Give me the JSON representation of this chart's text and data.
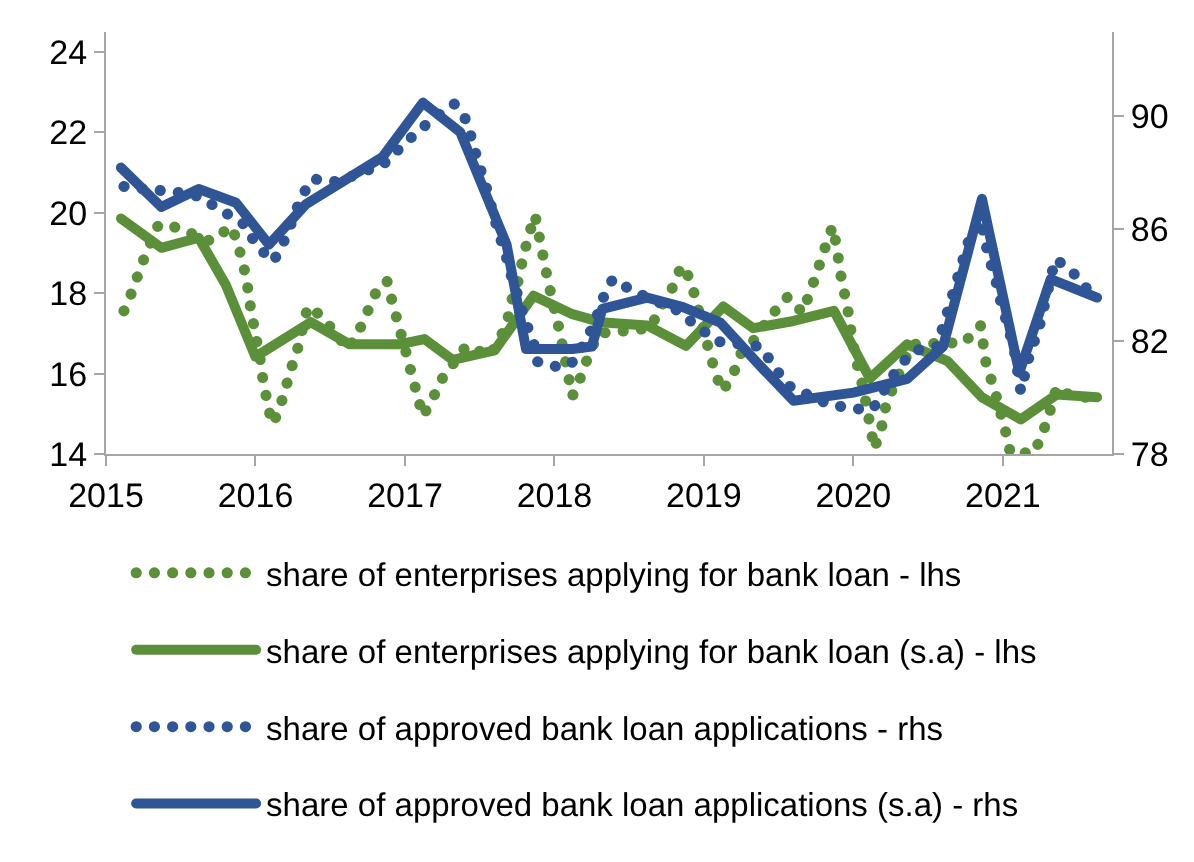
{
  "chart_data": {
    "type": "line",
    "xlim": [
      2015,
      2021.73
    ],
    "xticks": [
      2015,
      2016,
      2017,
      2018,
      2019,
      2020,
      2021
    ],
    "ylim": [
      14,
      24.5
    ],
    "yticks": [
      14,
      16,
      18,
      20,
      22,
      24
    ],
    "y2lim": [
      78,
      93
    ],
    "y2ticks": [
      78,
      82,
      86,
      90
    ],
    "legend": "bottom",
    "series": [
      {
        "name": "share of enterprises applying for bank loan - lhs",
        "color": "#5b8f3a",
        "line_style": "dotted",
        "x": [
          2015.12,
          2015.18,
          2015.23,
          2015.29,
          2015.35,
          2015.45,
          2015.7,
          2015.84,
          2015.88,
          2015.92,
          2015.95,
          2015.97,
          2016.0,
          2016.03,
          2016.05,
          2016.08,
          2016.11,
          2016.14,
          2016.19,
          2016.23,
          2016.28,
          2016.35,
          2016.44,
          2016.62,
          2016.7,
          2016.76,
          2016.82,
          2016.88,
          2016.92,
          2016.96,
          2017.0,
          2017.04,
          2017.08,
          2017.12,
          2017.18,
          2017.25,
          2017.41,
          2017.57,
          2017.68,
          2017.71,
          2017.76,
          2017.79,
          2017.83,
          2017.87,
          2017.9,
          2017.93,
          2017.96,
          2018.03,
          2018.09,
          2018.12,
          2018.18,
          2018.24,
          2018.3,
          2018.64,
          2018.71,
          2018.79,
          2018.85,
          2018.91,
          2018.95,
          2019.03,
          2019.07,
          2019.12,
          2019.19,
          2019.24,
          2019.33,
          2019.43,
          2019.56,
          2019.66,
          2019.71,
          2019.76,
          2019.81,
          2019.86,
          2019.89,
          2019.91,
          2019.94,
          2019.97,
          2019.99,
          2020.02,
          2020.06,
          2020.09,
          2020.14,
          2020.19,
          2020.22,
          2020.39,
          2020.74,
          2020.85,
          2020.89,
          2020.94,
          2021.02,
          2021.05,
          2021.21,
          2021.27,
          2021.32,
          2021.36,
          2021.46,
          2021.55,
          2021.63
        ],
        "values": [
          17.56,
          18.09,
          18.63,
          19.19,
          19.7,
          19.66,
          19.3,
          19.66,
          19.25,
          18.69,
          18.1,
          17.56,
          16.97,
          16.4,
          15.84,
          15.28,
          14.75,
          14.94,
          15.47,
          16.03,
          16.59,
          17.67,
          17.44,
          16.61,
          17.13,
          17.63,
          18.14,
          18.3,
          17.72,
          17.17,
          16.63,
          16.06,
          15.5,
          14.94,
          15.34,
          15.88,
          16.69,
          16.45,
          17.2,
          17.78,
          18.33,
          18.89,
          19.47,
          19.94,
          19.38,
          18.81,
          18.25,
          17.13,
          16.0,
          15.44,
          15.95,
          16.58,
          17.0,
          17.13,
          17.63,
          18.14,
          18.69,
          18.34,
          17.78,
          16.63,
          16.11,
          15.56,
          15.91,
          16.47,
          16.81,
          17.36,
          17.91,
          17.52,
          18.03,
          18.56,
          19.13,
          19.66,
          19.13,
          18.56,
          18.0,
          17.44,
          16.89,
          16.31,
          15.72,
          15.16,
          14.13,
          14.69,
          15.25,
          16.73,
          16.77,
          17.2,
          16.19,
          15.66,
          14.53,
          14.03,
          14.03,
          14.56,
          15.13,
          15.66,
          15.44,
          15.41,
          15.41
        ]
      },
      {
        "name": "share of enterprises applying for bank loan (s.a) - lhs",
        "color": "#5b8f3a",
        "line_style": "solid",
        "x": [
          2015.1,
          2015.37,
          2015.62,
          2015.8,
          2016.0,
          2016.37,
          2016.63,
          2016.96,
          2017.13,
          2017.32,
          2017.6,
          2017.86,
          2018.12,
          2018.31,
          2018.62,
          2018.88,
          2019.13,
          2019.33,
          2019.6,
          2019.87,
          2020.11,
          2020.36,
          2020.63,
          2020.86,
          2021.12,
          2021.36,
          2021.63
        ],
        "values": [
          19.86,
          19.13,
          19.38,
          18.22,
          16.42,
          17.28,
          16.73,
          16.73,
          16.86,
          16.34,
          16.58,
          17.94,
          17.48,
          17.28,
          17.2,
          16.69,
          17.67,
          17.13,
          17.31,
          17.56,
          15.88,
          16.73,
          16.31,
          15.41,
          14.86,
          15.48,
          15.41
        ]
      },
      {
        "name": "share of approved bank loan applications - rhs",
        "color": "#2f5597",
        "line_style": "dotted",
        "axis": "y2",
        "x": [
          2015.12,
          2015.29,
          2015.45,
          2015.62,
          2015.94,
          2016.0,
          2016.12,
          2016.19,
          2016.25,
          2016.3,
          2016.38,
          2016.56,
          2016.7,
          2016.85,
          2016.96,
          2017.08,
          2017.2,
          2017.33,
          2017.4,
          2017.45,
          2017.49,
          2017.54,
          2017.58,
          2017.62,
          2017.67,
          2017.71,
          2017.76,
          2017.8,
          2017.86,
          2017.88,
          2018.04,
          2018.13,
          2018.16,
          2018.22,
          2018.28,
          2018.33,
          2018.39,
          2018.53,
          2018.82,
          2018.95,
          2019.09,
          2019.38,
          2019.47,
          2019.56,
          2019.83,
          2020.0,
          2020.13,
          2020.29,
          2020.4,
          2020.56,
          2020.77,
          2020.85,
          2020.9,
          2020.95,
          2020.99,
          2021.04,
          2021.08,
          2021.12,
          2021.18,
          2021.24,
          2021.28,
          2021.35,
          2021.45,
          2021.56,
          2021.63
        ],
        "values": [
          87.51,
          87.4,
          87.33,
          87.16,
          86.11,
          85.44,
          84.84,
          85.56,
          86.33,
          87.07,
          87.78,
          87.67,
          88.0,
          88.27,
          88.84,
          89.44,
          89.96,
          90.44,
          89.96,
          89.16,
          88.36,
          87.56,
          86.76,
          85.96,
          85.16,
          84.36,
          83.56,
          82.78,
          82.0,
          81.29,
          81.07,
          81.29,
          81.6,
          82.11,
          82.84,
          83.6,
          84.22,
          83.78,
          83.11,
          82.56,
          82.0,
          81.82,
          81.11,
          80.44,
          79.78,
          79.6,
          79.6,
          81.0,
          81.67,
          81.82,
          85.56,
          86.33,
          85.11,
          84.22,
          83.33,
          82.44,
          81.56,
          80.22,
          81.56,
          82.44,
          83.33,
          84.93,
          84.56,
          83.89,
          83.56
        ]
      },
      {
        "name": "share of approved bank loan applications (s.a) - rhs",
        "color": "#2f5597",
        "line_style": "solid",
        "axis": "y2",
        "x": [
          2015.1,
          2015.37,
          2015.62,
          2015.87,
          2016.09,
          2016.34,
          2016.85,
          2017.12,
          2017.37,
          2017.68,
          2017.81,
          2018.12,
          2018.25,
          2018.32,
          2018.62,
          2018.86,
          2019.11,
          2019.38,
          2019.6,
          2020.0,
          2020.36,
          2020.6,
          2020.86,
          2021.11,
          2021.32,
          2021.63
        ],
        "values": [
          88.18,
          86.78,
          87.42,
          86.93,
          85.44,
          86.89,
          88.56,
          90.49,
          89.44,
          85.44,
          81.73,
          81.73,
          81.82,
          83.16,
          83.56,
          83.22,
          82.67,
          81.11,
          79.89,
          80.18,
          80.67,
          81.82,
          87.07,
          80.89,
          84.22,
          83.56
        ]
      }
    ]
  }
}
